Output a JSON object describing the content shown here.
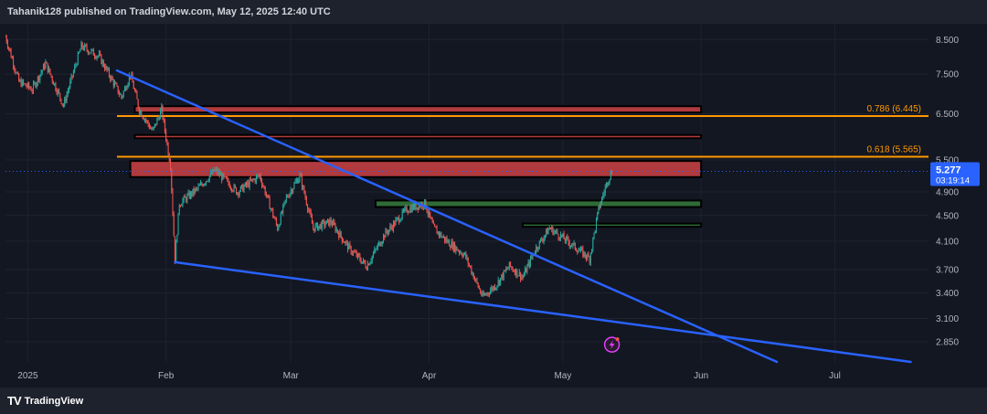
{
  "header": {
    "publisher": "Tahanik128 published on TradingView.com, May 12, 2025 12:40 UTC"
  },
  "footer": {
    "brand_logo": "TV",
    "brand_name": "TradingView"
  },
  "colors": {
    "background": "#131722",
    "grid": "#1f2330",
    "up": "#26a69a",
    "down": "#ef5350",
    "trendline": "#2962ff",
    "fib": "#ff9800",
    "resistance": "#b03a3e",
    "support": "#2e6b36",
    "price_label": "#2962ff"
  },
  "chart_data": {
    "type": "candlestick",
    "y_scale": "log",
    "ylim": [
      2.65,
      9.0
    ],
    "xlim": [
      "2024-12-27",
      "2025-07-22"
    ],
    "y_ticks": [
      "8.500",
      "7.500",
      "6.500",
      "5.500",
      "4.900",
      "4.500",
      "4.100",
      "3.700",
      "3.400",
      "3.100",
      "2.850"
    ],
    "x_ticks": [
      {
        "label": "2025",
        "date": "2025-01-01"
      },
      {
        "label": "Feb",
        "date": "2025-02-01"
      },
      {
        "label": "Mar",
        "date": "2025-03-01"
      },
      {
        "label": "Apr",
        "date": "2025-04-01"
      },
      {
        "label": "May",
        "date": "2025-05-01"
      },
      {
        "label": "Jun",
        "date": "2025-06-01"
      },
      {
        "label": "Jul",
        "date": "2025-07-01"
      }
    ],
    "current_price": {
      "value": "5.277",
      "countdown": "03:19:14",
      "price": 5.277
    },
    "price_path": [
      [
        "2024-12-27",
        8.6
      ],
      [
        "2024-12-30",
        7.3
      ],
      [
        "2025-01-02",
        7.1
      ],
      [
        "2025-01-05",
        7.8
      ],
      [
        "2025-01-09",
        6.7
      ],
      [
        "2025-01-13",
        8.3
      ],
      [
        "2025-01-17",
        8.0
      ],
      [
        "2025-01-22",
        6.9
      ],
      [
        "2025-01-24",
        7.5
      ],
      [
        "2025-01-26",
        6.6
      ],
      [
        "2025-01-29",
        6.1
      ],
      [
        "2025-01-31",
        6.6
      ],
      [
        "2025-02-02",
        5.4
      ],
      [
        "2025-02-03",
        3.85
      ],
      [
        "2025-02-04",
        4.7
      ],
      [
        "2025-02-08",
        4.95
      ],
      [
        "2025-02-12",
        5.3
      ],
      [
        "2025-02-17",
        4.9
      ],
      [
        "2025-02-22",
        5.2
      ],
      [
        "2025-02-26",
        4.3
      ],
      [
        "2025-02-28",
        4.8
      ],
      [
        "2025-03-03",
        5.2
      ],
      [
        "2025-03-06",
        4.3
      ],
      [
        "2025-03-10",
        4.4
      ],
      [
        "2025-03-14",
        4.0
      ],
      [
        "2025-03-18",
        3.75
      ],
      [
        "2025-03-22",
        4.2
      ],
      [
        "2025-03-27",
        4.6
      ],
      [
        "2025-03-31",
        4.7
      ],
      [
        "2025-04-02",
        4.3
      ],
      [
        "2025-04-05",
        4.1
      ],
      [
        "2025-04-09",
        3.9
      ],
      [
        "2025-04-13",
        3.35
      ],
      [
        "2025-04-16",
        3.5
      ],
      [
        "2025-04-19",
        3.75
      ],
      [
        "2025-04-22",
        3.6
      ],
      [
        "2025-04-25",
        4.0
      ],
      [
        "2025-04-28",
        4.3
      ],
      [
        "2025-05-01",
        4.15
      ],
      [
        "2025-05-05",
        3.95
      ],
      [
        "2025-05-07",
        3.85
      ],
      [
        "2025-05-09",
        4.6
      ],
      [
        "2025-05-11",
        5.1
      ],
      [
        "2025-05-12",
        5.277
      ]
    ],
    "trendlines": [
      {
        "name": "upper",
        "from": [
          "2025-01-21",
          7.6
        ],
        "to": [
          "2025-06-18",
          2.65
        ]
      },
      {
        "name": "lower",
        "from": [
          "2025-02-03",
          3.8
        ],
        "to": [
          "2025-07-18",
          2.65
        ]
      }
    ],
    "fib_levels": [
      {
        "label": "0.786 (6.445)",
        "value": 6.445,
        "from": "2025-01-21"
      },
      {
        "label": "0.618 (5.565)",
        "value": 5.565,
        "from": "2025-01-21"
      }
    ],
    "zones": [
      {
        "kind": "resistance",
        "from": "2025-01-25",
        "to": "2025-06-01",
        "top": 6.68,
        "bottom": 6.53
      },
      {
        "kind": "resistance",
        "from": "2025-01-25",
        "to": "2025-06-01",
        "top": 6.02,
        "bottom": 5.95
      },
      {
        "kind": "resistance",
        "from": "2025-01-24",
        "to": "2025-06-01",
        "top": 5.48,
        "bottom": 5.17
      },
      {
        "kind": "support",
        "from": "2025-03-20",
        "to": "2025-06-01",
        "top": 4.75,
        "bottom": 4.64
      },
      {
        "kind": "support",
        "from": "2025-04-22",
        "to": "2025-06-01",
        "top": 4.37,
        "bottom": 4.32
      }
    ],
    "alert_icon": {
      "date": "2025-05-12",
      "price": 2.82
    }
  }
}
